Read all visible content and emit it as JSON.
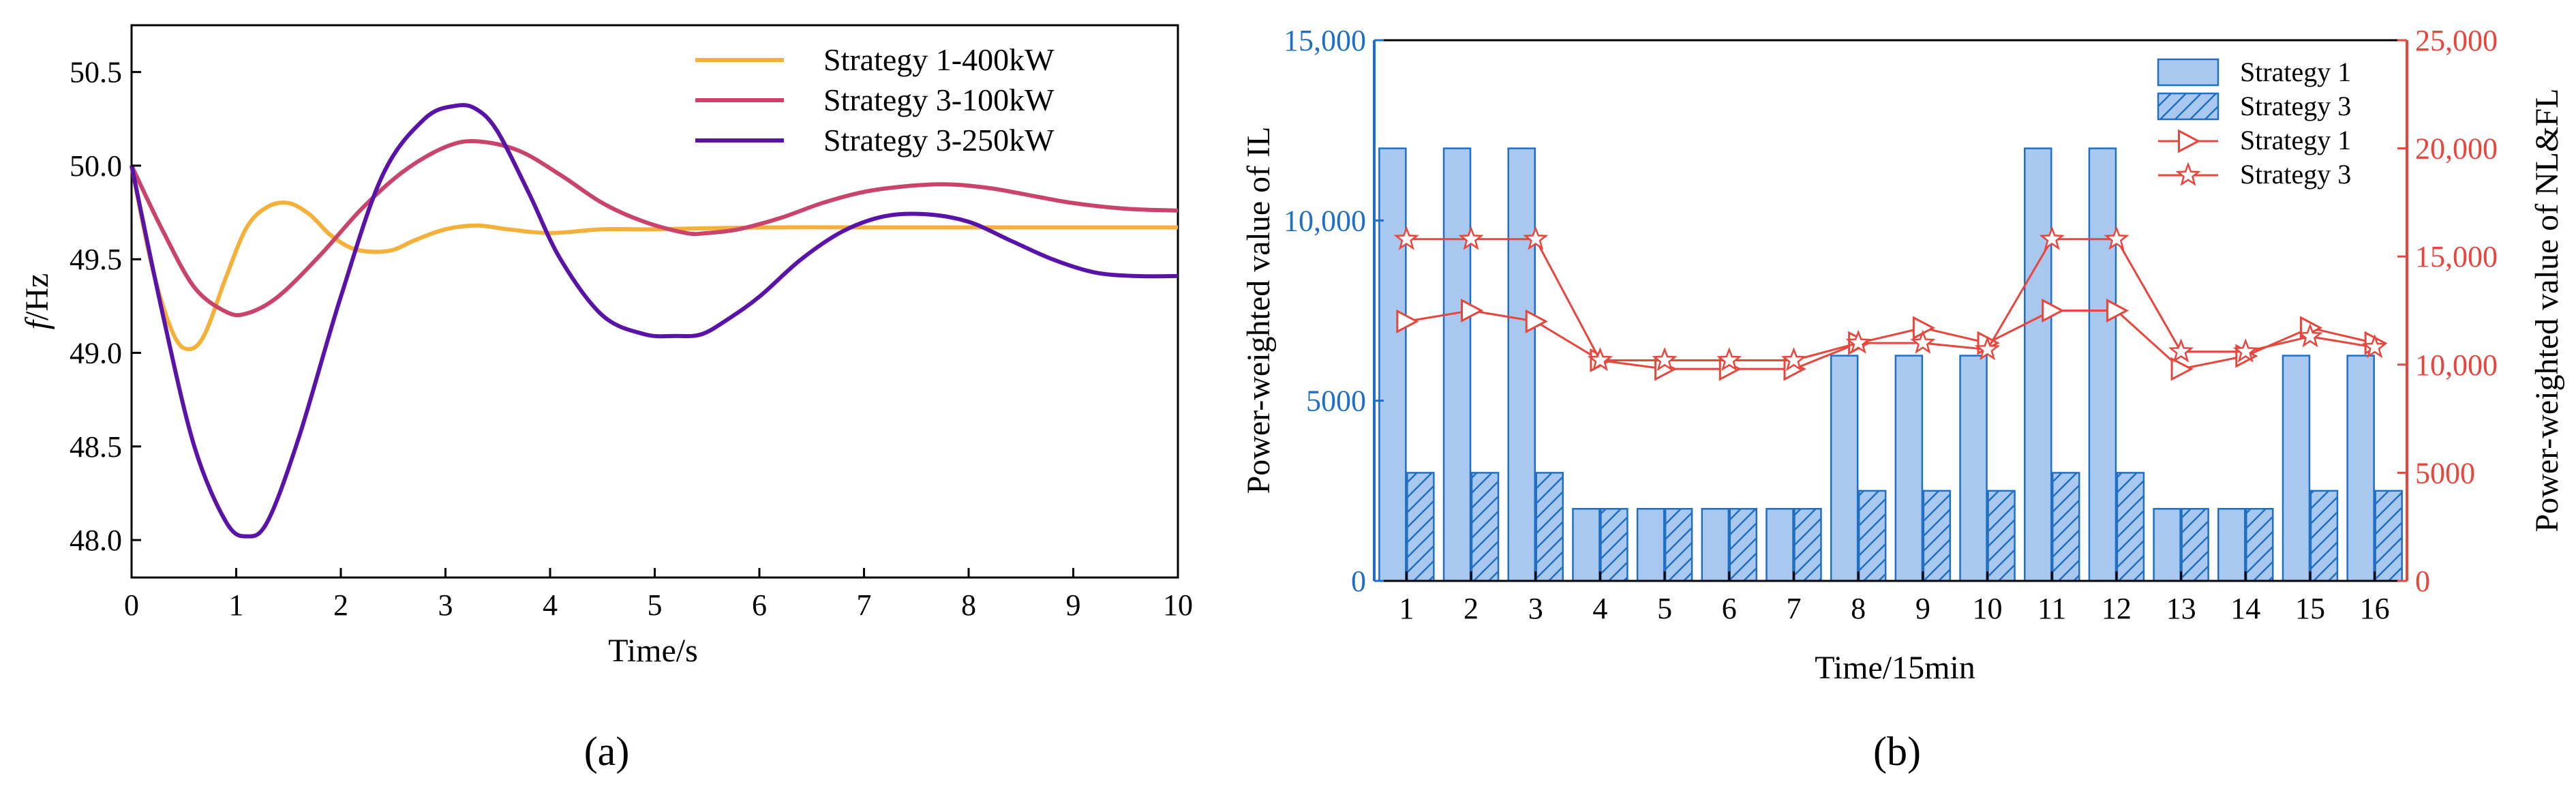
{
  "chart_data": [
    {
      "type": "line",
      "panel_label": "(a)",
      "xlabel": "Time/s",
      "ylabel_italic": "f",
      "ylabel_rest": "/Hz",
      "xlim": [
        0,
        10
      ],
      "ylim": [
        47.8,
        50.75
      ],
      "xticks": [
        0,
        1,
        2,
        3,
        4,
        5,
        6,
        7,
        8,
        9,
        10
      ],
      "yticks": [
        48.0,
        48.5,
        49.0,
        49.5,
        50.0,
        50.5
      ],
      "ytick_labels": [
        "48.0",
        "48.5",
        "49.0",
        "49.5",
        "50.0",
        "50.5"
      ],
      "legend_position": "top-right",
      "series": [
        {
          "name": "Strategy 1-400kW",
          "color": "#f5b03a",
          "x": [
            0,
            0.2,
            0.4,
            0.55,
            0.7,
            0.9,
            1.1,
            1.3,
            1.5,
            1.7,
            1.9,
            2.1,
            2.3,
            2.5,
            2.7,
            3.0,
            3.3,
            3.6,
            4.0,
            4.5,
            5.0,
            6.0,
            7.0,
            8.0,
            9.0,
            10.0
          ],
          "y": [
            50.0,
            49.45,
            49.1,
            49.02,
            49.1,
            49.4,
            49.67,
            49.78,
            49.8,
            49.74,
            49.63,
            49.56,
            49.54,
            49.55,
            49.6,
            49.66,
            49.68,
            49.66,
            49.64,
            49.66,
            49.66,
            49.67,
            49.67,
            49.67,
            49.67,
            49.67
          ]
        },
        {
          "name": "Strategy 3-100kW",
          "color": "#c9436b",
          "x": [
            0,
            0.3,
            0.6,
            0.9,
            1.1,
            1.4,
            1.8,
            2.2,
            2.6,
            3.0,
            3.3,
            3.7,
            4.1,
            4.5,
            4.9,
            5.3,
            5.5,
            5.8,
            6.2,
            6.6,
            7.0,
            7.4,
            7.8,
            8.2,
            8.6,
            9.0,
            9.5,
            10.0
          ],
          "y": [
            50.0,
            49.65,
            49.35,
            49.22,
            49.21,
            49.3,
            49.52,
            49.77,
            49.97,
            50.1,
            50.13,
            50.08,
            49.95,
            49.8,
            49.7,
            49.64,
            49.64,
            49.66,
            49.72,
            49.8,
            49.86,
            49.89,
            49.9,
            49.88,
            49.84,
            49.8,
            49.77,
            49.76
          ]
        },
        {
          "name": "Strategy 3-250kW",
          "color": "#5a13a8",
          "x": [
            0,
            0.3,
            0.6,
            0.9,
            1.1,
            1.3,
            1.6,
            2.0,
            2.4,
            2.8,
            3.1,
            3.3,
            3.5,
            3.8,
            4.1,
            4.5,
            4.9,
            5.2,
            5.45,
            5.7,
            6.0,
            6.4,
            6.8,
            7.2,
            7.6,
            8.0,
            8.4,
            8.8,
            9.2,
            9.6,
            10.0
          ],
          "y": [
            50.0,
            49.2,
            48.5,
            48.1,
            48.02,
            48.1,
            48.55,
            49.3,
            49.95,
            50.25,
            50.32,
            50.3,
            50.18,
            49.85,
            49.5,
            49.2,
            49.1,
            49.09,
            49.1,
            49.18,
            49.3,
            49.5,
            49.65,
            49.73,
            49.74,
            49.7,
            49.6,
            49.5,
            49.43,
            49.41,
            49.41
          ]
        }
      ]
    },
    {
      "type": "bar",
      "panel_label": "(b)",
      "xlabel": "Time/15min",
      "ylabel_left": "Power-weighted value of  IL",
      "ylabel_right": "Power-weighted value of NL&FL",
      "categories": [
        "1",
        "2",
        "3",
        "4",
        "5",
        "6",
        "7",
        "8",
        "9",
        "10",
        "11",
        "12",
        "13",
        "14",
        "15",
        "16"
      ],
      "ylim_left": [
        0,
        15000
      ],
      "yticks_left": [
        0,
        5000,
        10000,
        15000
      ],
      "ytick_labels_left": [
        "0",
        "5000",
        "10,000",
        "15,000"
      ],
      "ylim_right": [
        0,
        25000
      ],
      "yticks_right": [
        0,
        5000,
        10000,
        15000,
        20000,
        25000
      ],
      "ytick_labels_right": [
        "0",
        "5000",
        "10,000",
        "15,000",
        "20,000",
        "25,000"
      ],
      "left_axis_color": "#1f6fc5",
      "right_axis_color": "#e8453c",
      "legend_position": "top-right",
      "bar_series": [
        {
          "name": "Strategy 1",
          "pattern": "solid",
          "values": [
            12000,
            12000,
            12000,
            2000,
            2000,
            2000,
            2000,
            6250,
            6250,
            6250,
            12000,
            12000,
            2000,
            2000,
            6250,
            6250
          ]
        },
        {
          "name": "Strategy 3",
          "pattern": "hatched",
          "values": [
            3000,
            3000,
            3000,
            2000,
            2000,
            2000,
            2000,
            2500,
            2500,
            2500,
            3000,
            3000,
            2000,
            2000,
            2500,
            2500
          ]
        }
      ],
      "line_series": [
        {
          "name": "Strategy 1",
          "marker": "triangle-right",
          "axis": "right",
          "values": [
            12000,
            12500,
            12000,
            10200,
            9800,
            9800,
            9800,
            11000,
            11700,
            11000,
            12500,
            12500,
            9800,
            10400,
            11700,
            11000
          ]
        },
        {
          "name": "Strategy 3",
          "marker": "star",
          "axis": "right",
          "values": [
            15800,
            15800,
            15800,
            10200,
            10200,
            10200,
            10200,
            11000,
            11000,
            10700,
            15800,
            15800,
            10600,
            10600,
            11300,
            10800
          ]
        }
      ]
    }
  ]
}
